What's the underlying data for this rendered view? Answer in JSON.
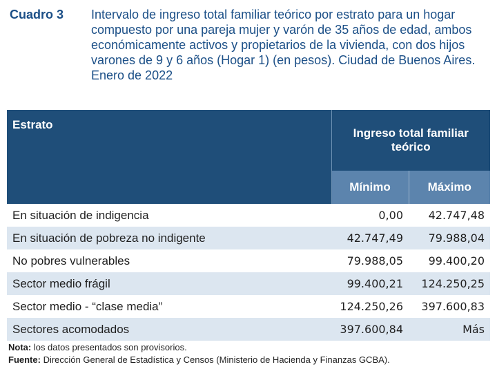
{
  "header": {
    "cuadro_label": "Cuadro 3",
    "title": "Intervalo de ingreso total familiar teórico por estrato para un hogar compuesto por una pareja mujer y varón de 35 años de edad, ambos económicamente activos y propietarios de la vivienda, con dos hijos varones de 9 y 6 años (Hogar 1) (en pesos). Ciudad de Buenos Aires. Enero de 2022"
  },
  "table": {
    "col_estrato": "Estrato",
    "col_ingreso": "Ingreso total familiar teórico",
    "col_min": "Mínimo",
    "col_max": "Máximo",
    "rows": [
      {
        "estrato": "En situación de indigencia",
        "min": "0,00",
        "max": "42.747,48"
      },
      {
        "estrato": "En situación de pobreza no indigente",
        "min": "42.747,49",
        "max": "79.988,04"
      },
      {
        "estrato": "No pobres vulnerables",
        "min": "79.988,05",
        "max": "99.400,20"
      },
      {
        "estrato": "Sector medio frágil",
        "min": "99.400,21",
        "max": "124.250,25"
      },
      {
        "estrato": "Sector medio - “clase media”",
        "min": "124.250,26",
        "max": "397.600,83"
      },
      {
        "estrato": "Sectores acomodados",
        "min": "397.600,84",
        "max": "Más"
      }
    ]
  },
  "notes": {
    "nota_label": "Nota:",
    "nota_text": " los datos presentados son provisorios.",
    "fuente_label": "Fuente:",
    "fuente_text": " Dirección General de Estadística y Censos (Ministerio de Hacienda y Finanzas GCBA)."
  },
  "colors": {
    "header_bg": "#1f4e79",
    "subheader_bg": "#5c84ad",
    "alt_row_bg": "#dce6f0",
    "title_color": "#1b4f87"
  }
}
